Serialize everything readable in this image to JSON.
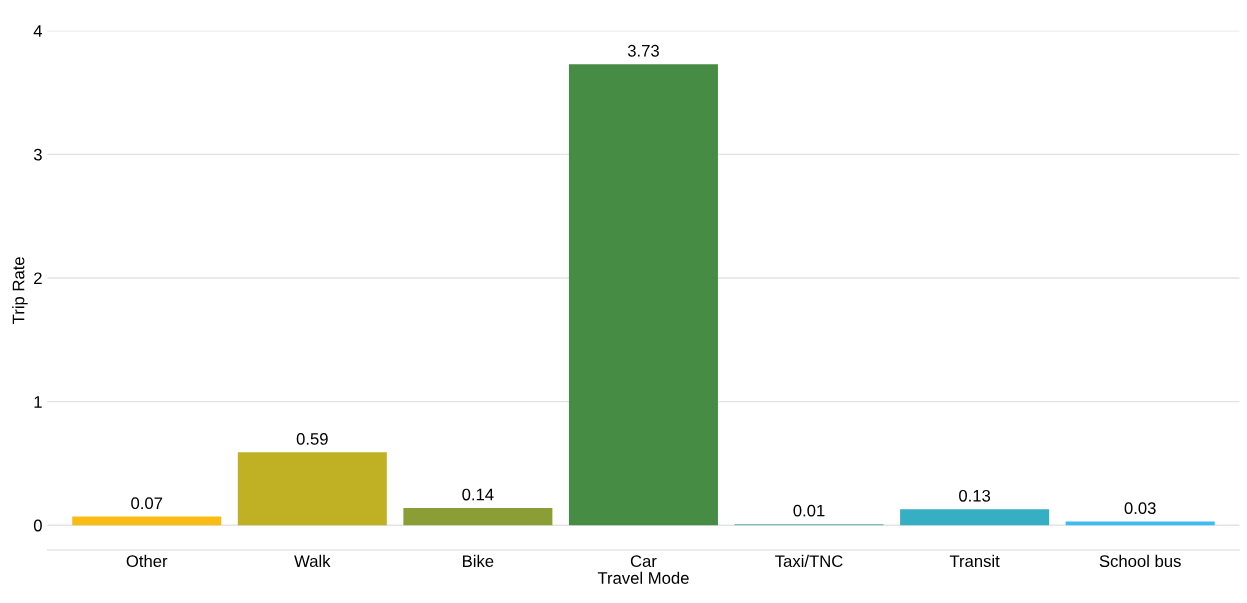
{
  "chart_data": {
    "type": "bar",
    "xlabel": "Travel Mode",
    "ylabel": "Trip Rate",
    "categories": [
      "Other",
      "Walk",
      "Bike",
      "Car",
      "Taxi/TNC",
      "Transit",
      "School bus"
    ],
    "values": [
      0.07,
      0.59,
      0.14,
      3.73,
      0.01,
      0.13,
      0.03
    ],
    "colors": [
      "#f9bc15",
      "#c0b024",
      "#8a9e35",
      "#478c44",
      "#7fbfae",
      "#36aec4",
      "#3cbcf0"
    ],
    "ylim": [
      -0.2,
      4
    ],
    "yticks": [
      0,
      1,
      2,
      3,
      4
    ],
    "grid": "y",
    "data_labels": true
  }
}
